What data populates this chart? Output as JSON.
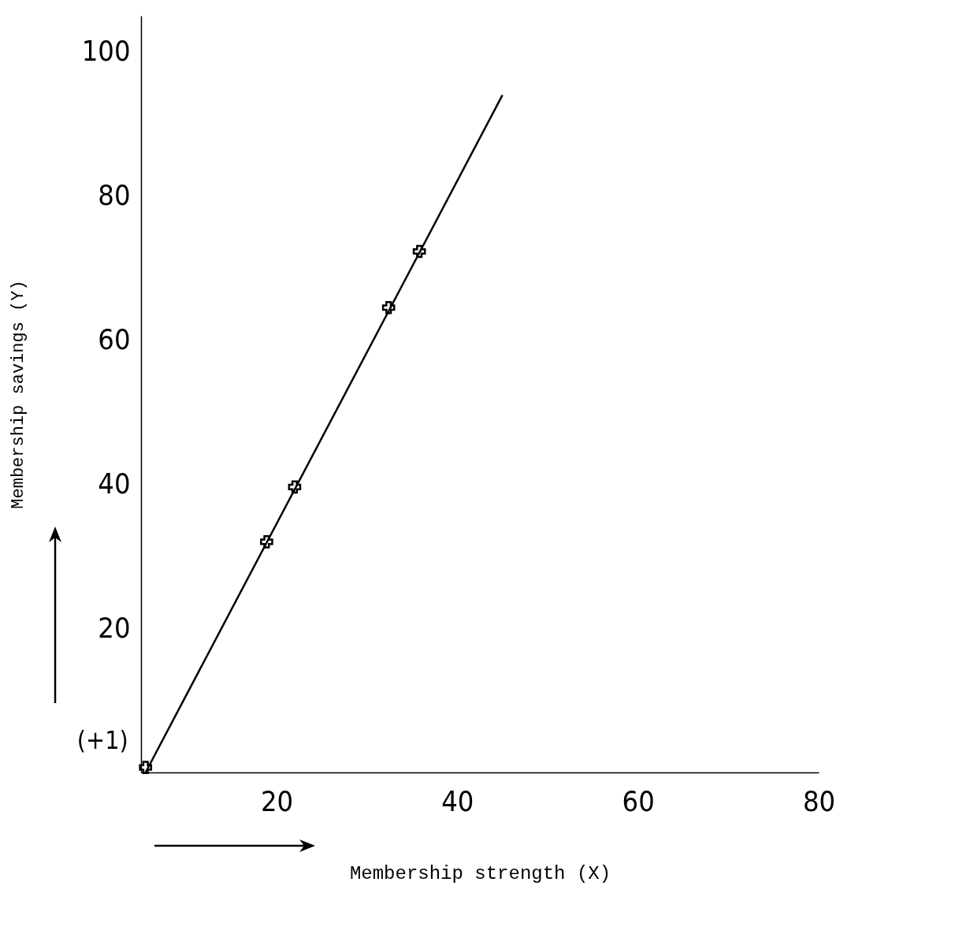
{
  "chart_data": {
    "type": "scatter",
    "xlabel": "Membership strength (X)",
    "ylabel": "Membership savings (Y)",
    "xlim": [
      5,
      80
    ],
    "xticks": [
      20,
      40,
      60,
      80
    ],
    "ylim": [
      0,
      105
    ],
    "yticks": [
      20,
      40,
      60,
      80,
      100
    ],
    "series": [
      {
        "color": "#000000",
        "marker": "cross",
        "x": [
          5.5,
          18.9,
          22,
          32.4,
          35.8
        ],
        "values": [
          0.7,
          32,
          39.6,
          64.5,
          72.3
        ]
      },
      {
        "type": "line",
        "color": "#000000",
        "x": [
          5.5,
          45
        ],
        "values": [
          0,
          94
        ]
      }
    ],
    "line_style": "solid",
    "grid": false,
    "annotations": [
      {
        "text": "(+1)",
        "x": 5.5,
        "y": 1
      }
    ]
  }
}
